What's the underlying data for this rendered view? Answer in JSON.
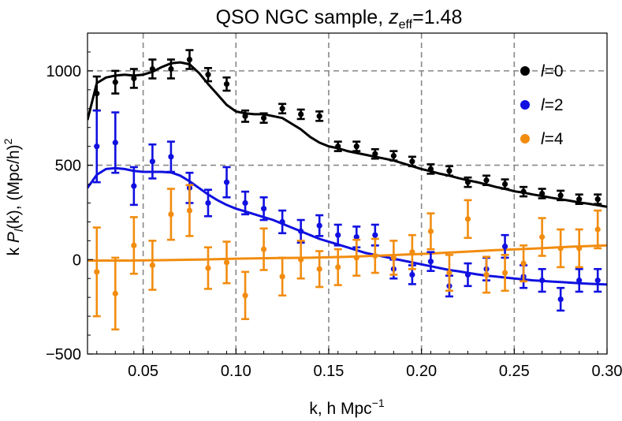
{
  "title": {
    "text": "QSO NGC sample, ",
    "z": "z",
    "eff": "eff",
    "value": "=1.48"
  },
  "xlabel": {
    "text": "k, h Mpc",
    "sup": "−1"
  },
  "ylabel": {
    "pre": "k ",
    "P": "P",
    "sub": "l",
    "mid": "(k), (Mpc/h)",
    "sup": "2"
  },
  "legend": [
    {
      "symbol": "l",
      "label": "=0"
    },
    {
      "symbol": "l",
      "label": "=2"
    },
    {
      "symbol": "l",
      "label": "=4"
    }
  ],
  "chart_data": {
    "type": "scatter",
    "title": "QSO NGC sample, z_eff=1.48",
    "xlabel": "k, h Mpc^-1",
    "ylabel": "k P_l(k), (Mpc/h)^2",
    "xlim": [
      0.02,
      0.3
    ],
    "ylim": [
      -500,
      1200
    ],
    "grid": "dashed at x ticks 0.05-0.25 and y ticks 500, 1000",
    "legend_position": "top-right",
    "x_ticks": [
      "0.05",
      "0.10",
      "0.15",
      "0.20",
      "0.25",
      "0.30"
    ],
    "y_ticks": [
      "−500",
      "0",
      "500",
      "1000"
    ],
    "x_tick_values": [
      0.05,
      0.1,
      0.15,
      0.2,
      0.25,
      0.3
    ],
    "y_tick_values": [
      -500,
      0,
      500,
      1000
    ],
    "series": [
      {
        "name": "l=0",
        "color": "#000000",
        "x": [
          0.025,
          0.035,
          0.045,
          0.055,
          0.065,
          0.075,
          0.085,
          0.095,
          0.105,
          0.115,
          0.125,
          0.135,
          0.145,
          0.155,
          0.165,
          0.175,
          0.185,
          0.195,
          0.205,
          0.215,
          0.225,
          0.235,
          0.245,
          0.255,
          0.265,
          0.275,
          0.285,
          0.295
        ],
        "y": [
          880,
          940,
          960,
          1010,
          1010,
          1060,
          980,
          930,
          760,
          750,
          800,
          770,
          760,
          600,
          600,
          560,
          550,
          520,
          480,
          470,
          410,
          420,
          400,
          360,
          350,
          340,
          320,
          320
        ],
        "err": [
          90,
          60,
          50,
          50,
          50,
          50,
          35,
          35,
          30,
          25,
          25,
          25,
          25,
          25,
          25,
          25,
          25,
          25,
          25,
          25,
          25,
          25,
          25,
          25,
          25,
          25,
          25,
          25
        ],
        "model_x": [
          0.02,
          0.025,
          0.03,
          0.035,
          0.04,
          0.045,
          0.05,
          0.055,
          0.06,
          0.065,
          0.07,
          0.075,
          0.08,
          0.085,
          0.09,
          0.095,
          0.1,
          0.105,
          0.11,
          0.115,
          0.12,
          0.125,
          0.13,
          0.135,
          0.14,
          0.145,
          0.15,
          0.155,
          0.16,
          0.165,
          0.17,
          0.175,
          0.18,
          0.185,
          0.19,
          0.195,
          0.2,
          0.205,
          0.21,
          0.215,
          0.22,
          0.225,
          0.23,
          0.235,
          0.24,
          0.245,
          0.25,
          0.255,
          0.26,
          0.265,
          0.27,
          0.275,
          0.28,
          0.285,
          0.29,
          0.295,
          0.3
        ],
        "model_y": [
          740,
          935,
          965,
          975,
          980,
          975,
          980,
          995,
          1020,
          1040,
          1045,
          1035,
          990,
          930,
          875,
          820,
          785,
          775,
          770,
          770,
          760,
          750,
          720,
          690,
          650,
          620,
          600,
          590,
          575,
          565,
          555,
          545,
          535,
          525,
          510,
          495,
          480,
          468,
          455,
          445,
          432,
          420,
          410,
          398,
          385,
          375,
          362,
          355,
          345,
          337,
          328,
          320,
          312,
          303,
          296,
          288,
          280
        ]
      },
      {
        "name": "l=2",
        "color": "#1010e0",
        "x": [
          0.025,
          0.035,
          0.045,
          0.055,
          0.065,
          0.075,
          0.085,
          0.095,
          0.105,
          0.115,
          0.125,
          0.135,
          0.145,
          0.155,
          0.165,
          0.175,
          0.185,
          0.195,
          0.205,
          0.215,
          0.225,
          0.235,
          0.245,
          0.255,
          0.265,
          0.275,
          0.285,
          0.295
        ],
        "y": [
          600,
          620,
          390,
          520,
          545,
          380,
          300,
          410,
          300,
          270,
          200,
          150,
          180,
          130,
          120,
          130,
          -50,
          -80,
          -10,
          -140,
          -80,
          -50,
          70,
          -90,
          -110,
          -210,
          -110,
          -110
        ],
        "err": [
          190,
          160,
          100,
          90,
          80,
          80,
          70,
          80,
          60,
          60,
          60,
          60,
          55,
          55,
          55,
          55,
          50,
          50,
          50,
          55,
          60,
          60,
          60,
          60,
          60,
          60,
          60,
          60
        ],
        "model_x": [
          0.02,
          0.025,
          0.03,
          0.035,
          0.04,
          0.045,
          0.05,
          0.055,
          0.06,
          0.065,
          0.07,
          0.075,
          0.08,
          0.085,
          0.09,
          0.095,
          0.1,
          0.105,
          0.11,
          0.115,
          0.12,
          0.125,
          0.13,
          0.135,
          0.14,
          0.145,
          0.15,
          0.155,
          0.16,
          0.165,
          0.17,
          0.175,
          0.18,
          0.185,
          0.19,
          0.195,
          0.2,
          0.205,
          0.21,
          0.215,
          0.22,
          0.225,
          0.23,
          0.235,
          0.24,
          0.245,
          0.25,
          0.255,
          0.26,
          0.265,
          0.27,
          0.275,
          0.28,
          0.285,
          0.29,
          0.295,
          0.3
        ],
        "model_y": [
          380,
          450,
          480,
          485,
          480,
          470,
          465,
          465,
          465,
          462,
          445,
          415,
          380,
          345,
          315,
          290,
          270,
          255,
          240,
          225,
          210,
          190,
          170,
          150,
          130,
          110,
          95,
          80,
          65,
          50,
          35,
          25,
          15,
          5,
          -5,
          -15,
          -25,
          -35,
          -45,
          -55,
          -62,
          -70,
          -78,
          -85,
          -90,
          -95,
          -100,
          -105,
          -110,
          -113,
          -116,
          -119,
          -122,
          -125,
          -128,
          -130,
          -132
        ]
      },
      {
        "name": "l=4",
        "color": "#f28c0f",
        "x": [
          0.025,
          0.035,
          0.045,
          0.055,
          0.065,
          0.075,
          0.085,
          0.095,
          0.105,
          0.115,
          0.125,
          0.135,
          0.145,
          0.155,
          0.165,
          0.175,
          0.185,
          0.195,
          0.205,
          0.215,
          0.225,
          0.235,
          0.245,
          0.255,
          0.265,
          0.275,
          0.285,
          0.295
        ],
        "y": [
          -65,
          -180,
          75,
          -30,
          240,
          260,
          -45,
          -15,
          -190,
          55,
          -90,
          0,
          -50,
          -40,
          10,
          20,
          10,
          40,
          150,
          -70,
          215,
          -80,
          -70,
          -20,
          120,
          60,
          60,
          160
        ],
        "err": [
          235,
          190,
          150,
          130,
          135,
          135,
          110,
          110,
          125,
          110,
          100,
          100,
          95,
          95,
          95,
          90,
          90,
          90,
          95,
          95,
          100,
          95,
          95,
          95,
          100,
          100,
          100,
          100
        ],
        "model_x": [
          0.02,
          0.04,
          0.06,
          0.08,
          0.1,
          0.12,
          0.14,
          0.16,
          0.18,
          0.2,
          0.22,
          0.24,
          0.26,
          0.28,
          0.3
        ],
        "model_y": [
          -5,
          -5,
          -3,
          0,
          5,
          8,
          10,
          15,
          22,
          30,
          40,
          50,
          58,
          68,
          75
        ]
      }
    ]
  }
}
